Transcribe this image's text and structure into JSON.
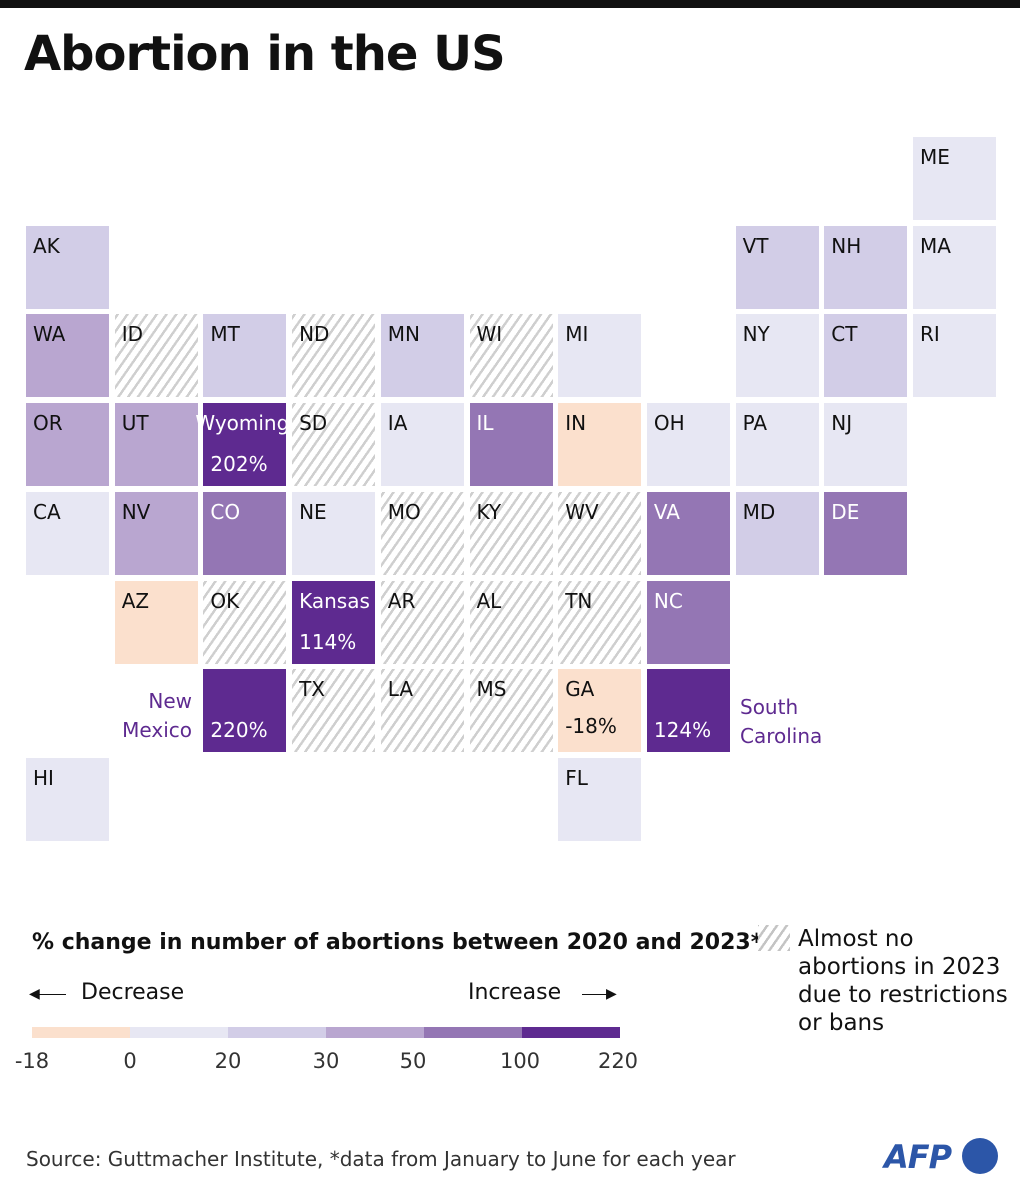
{
  "title": "Abortion in the US",
  "colors": {
    "decrease": "#fbe0cd",
    "bin_0_20": "#e7e7f3",
    "bin_20_30": "#d2cde7",
    "bin_30_50": "#b9a6d0",
    "bin_50_100": "#9476b4",
    "bin_100_plus": "#5e2a90",
    "accent_text": "#5e2a90"
  },
  "map": {
    "states": [
      {
        "abbr": "ME",
        "row": 0,
        "col": 10,
        "bin": "bin_0_20"
      },
      {
        "abbr": "AK",
        "row": 1,
        "col": 0,
        "bin": "bin_20_30"
      },
      {
        "abbr": "VT",
        "row": 1,
        "col": 8,
        "bin": "bin_20_30"
      },
      {
        "abbr": "NH",
        "row": 1,
        "col": 9,
        "bin": "bin_20_30"
      },
      {
        "abbr": "MA",
        "row": 1,
        "col": 10,
        "bin": "bin_0_20"
      },
      {
        "abbr": "WA",
        "row": 2,
        "col": 0,
        "bin": "bin_30_50"
      },
      {
        "abbr": "ID",
        "row": 2,
        "col": 1,
        "bin": "hatch"
      },
      {
        "abbr": "MT",
        "row": 2,
        "col": 2,
        "bin": "bin_20_30"
      },
      {
        "abbr": "ND",
        "row": 2,
        "col": 3,
        "bin": "hatch"
      },
      {
        "abbr": "MN",
        "row": 2,
        "col": 4,
        "bin": "bin_20_30"
      },
      {
        "abbr": "WI",
        "row": 2,
        "col": 5,
        "bin": "hatch"
      },
      {
        "abbr": "MI",
        "row": 2,
        "col": 6,
        "bin": "bin_0_20"
      },
      {
        "abbr": "NY",
        "row": 2,
        "col": 8,
        "bin": "bin_0_20"
      },
      {
        "abbr": "CT",
        "row": 2,
        "col": 9,
        "bin": "bin_20_30"
      },
      {
        "abbr": "RI",
        "row": 2,
        "col": 10,
        "bin": "bin_0_20"
      },
      {
        "abbr": "OR",
        "row": 3,
        "col": 0,
        "bin": "bin_30_50"
      },
      {
        "abbr": "UT",
        "row": 3,
        "col": 1,
        "bin": "bin_30_50"
      },
      {
        "abbr": "Wyoming",
        "row": 3,
        "col": 2,
        "bin": "bin_100_plus",
        "pct": "202%",
        "big": true
      },
      {
        "abbr": "SD",
        "row": 3,
        "col": 3,
        "bin": "hatch"
      },
      {
        "abbr": "IA",
        "row": 3,
        "col": 4,
        "bin": "bin_0_20"
      },
      {
        "abbr": "IL",
        "row": 3,
        "col": 5,
        "bin": "bin_50_100"
      },
      {
        "abbr": "IN",
        "row": 3,
        "col": 6,
        "bin": "decrease"
      },
      {
        "abbr": "OH",
        "row": 3,
        "col": 7,
        "bin": "bin_0_20"
      },
      {
        "abbr": "PA",
        "row": 3,
        "col": 8,
        "bin": "bin_0_20"
      },
      {
        "abbr": "NJ",
        "row": 3,
        "col": 9,
        "bin": "bin_0_20"
      },
      {
        "abbr": "CA",
        "row": 4,
        "col": 0,
        "bin": "bin_0_20"
      },
      {
        "abbr": "NV",
        "row": 4,
        "col": 1,
        "bin": "bin_30_50"
      },
      {
        "abbr": "CO",
        "row": 4,
        "col": 2,
        "bin": "bin_50_100"
      },
      {
        "abbr": "NE",
        "row": 4,
        "col": 3,
        "bin": "bin_0_20"
      },
      {
        "abbr": "MO",
        "row": 4,
        "col": 4,
        "bin": "hatch"
      },
      {
        "abbr": "KY",
        "row": 4,
        "col": 5,
        "bin": "hatch"
      },
      {
        "abbr": "WV",
        "row": 4,
        "col": 6,
        "bin": "hatch"
      },
      {
        "abbr": "VA",
        "row": 4,
        "col": 7,
        "bin": "bin_50_100"
      },
      {
        "abbr": "MD",
        "row": 4,
        "col": 8,
        "bin": "bin_20_30"
      },
      {
        "abbr": "DE",
        "row": 4,
        "col": 9,
        "bin": "bin_50_100"
      },
      {
        "abbr": "AZ",
        "row": 5,
        "col": 1,
        "bin": "decrease"
      },
      {
        "abbr": "OK",
        "row": 5,
        "col": 2,
        "bin": "hatch"
      },
      {
        "abbr": "Kansas",
        "row": 5,
        "col": 3,
        "bin": "bin_100_plus",
        "pct": "114%"
      },
      {
        "abbr": "AR",
        "row": 5,
        "col": 4,
        "bin": "hatch"
      },
      {
        "abbr": "AL",
        "row": 5,
        "col": 5,
        "bin": "hatch"
      },
      {
        "abbr": "TN",
        "row": 5,
        "col": 6,
        "bin": "hatch"
      },
      {
        "abbr": "NC",
        "row": 5,
        "col": 7,
        "bin": "bin_50_100"
      },
      {
        "abbr": "",
        "row": 6,
        "col": 2,
        "bin": "bin_100_plus",
        "pct": "220%"
      },
      {
        "abbr": "TX",
        "row": 6,
        "col": 3,
        "bin": "hatch"
      },
      {
        "abbr": "LA",
        "row": 6,
        "col": 4,
        "bin": "hatch"
      },
      {
        "abbr": "MS",
        "row": 6,
        "col": 5,
        "bin": "hatch"
      },
      {
        "abbr": "GA",
        "row": 6,
        "col": 6,
        "bin": "decrease",
        "pct": "-18%",
        "dark": true
      },
      {
        "abbr": "",
        "row": 6,
        "col": 7,
        "bin": "bin_100_plus",
        "pct": "124%"
      },
      {
        "abbr": "HI",
        "row": 7,
        "col": 0,
        "bin": "bin_0_20"
      },
      {
        "abbr": "FL",
        "row": 7,
        "col": 6,
        "bin": "bin_0_20"
      }
    ],
    "external_labels": {
      "new_mexico": "New\nMexico",
      "south_carolina": "South\nCarolina"
    }
  },
  "legend": {
    "title": "% change in number of abortions between 2020 and 2023*",
    "decrease_label": "Decrease",
    "increase_label": "Increase",
    "ticks": [
      "-18",
      "0",
      "20",
      "30",
      "50",
      "100",
      "220"
    ],
    "bins": [
      "decrease",
      "bin_0_20",
      "bin_20_30",
      "bin_30_50",
      "bin_50_100",
      "bin_100_plus"
    ],
    "hatch_label": "Almost no abortions in 2023 due to restrictions or bans"
  },
  "source": "Source: Guttmacher Institute, *data from January to June for each year",
  "logo": "AFP"
}
